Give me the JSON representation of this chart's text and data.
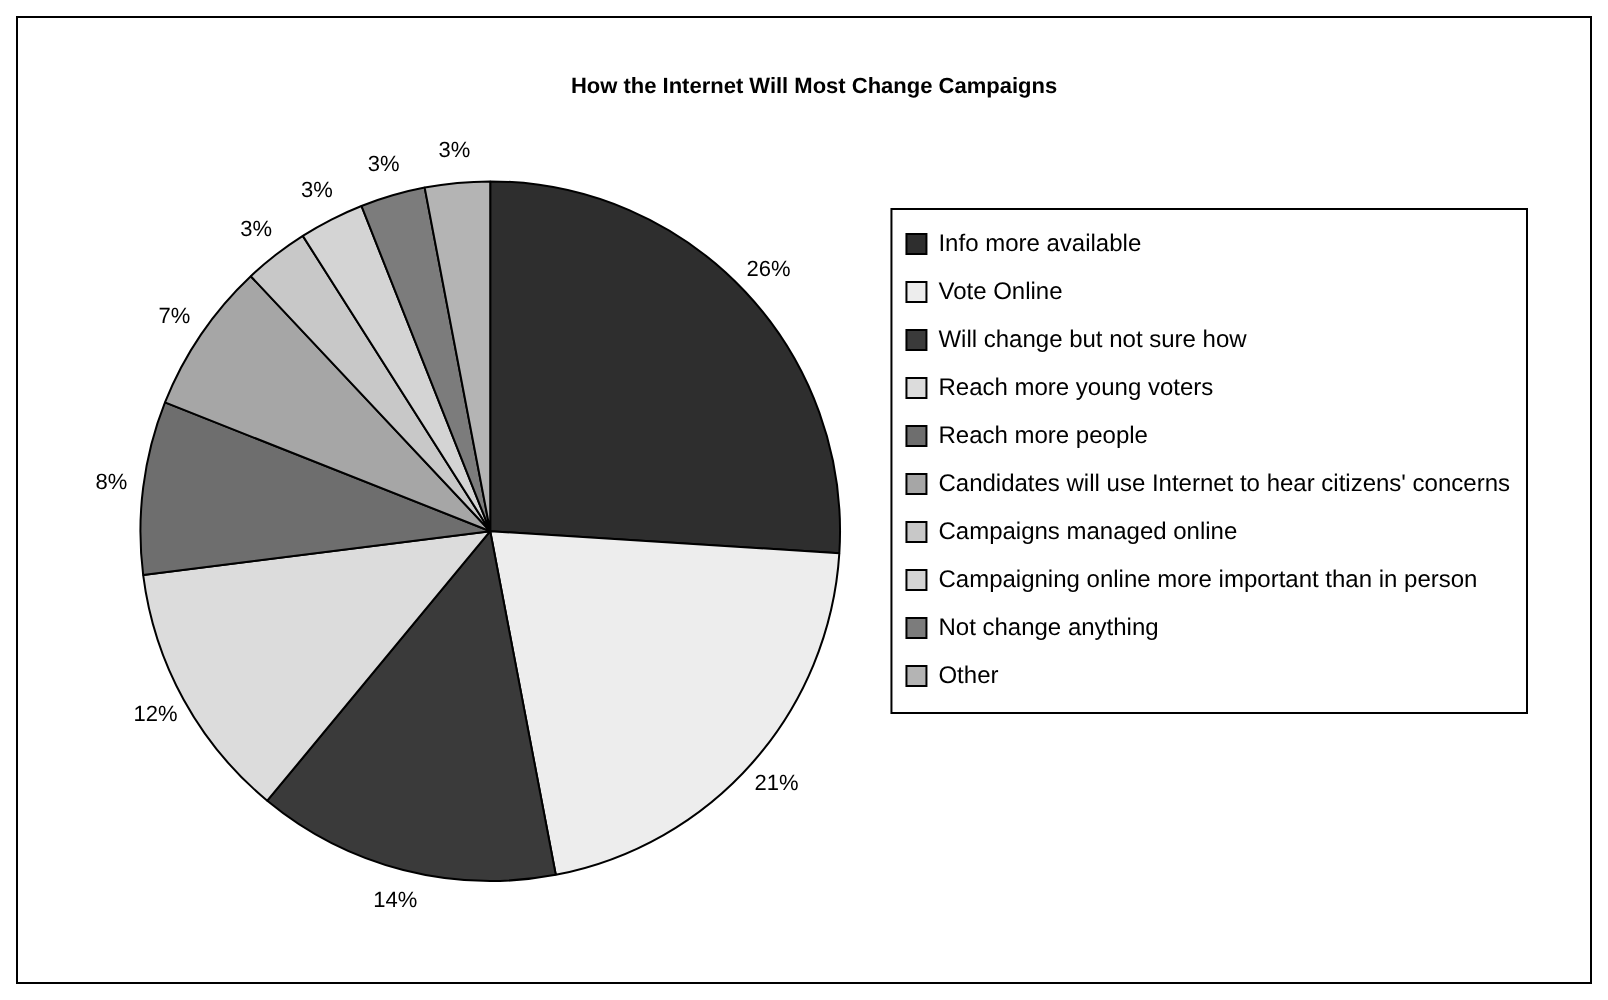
{
  "chart_data": {
    "type": "pie",
    "title": "How the Internet Will Most Change Campaigns",
    "categories": [
      "Info more available",
      "Vote Online",
      "Will change but not sure how",
      "Reach more young voters",
      "Reach more people",
      "Candidates will use Internet to hear citizens' concerns",
      "Campaigns managed online",
      "Campaigning online more important than in person",
      "Not change anything",
      "Other"
    ],
    "values": [
      26,
      21,
      14,
      12,
      8,
      7,
      3,
      3,
      3,
      3
    ],
    "value_labels": [
      "26%",
      "21%",
      "14%",
      "12%",
      "8%",
      "7%",
      "3%",
      "3%",
      "3%",
      "3%"
    ],
    "colors": [
      "#2e2e2e",
      "#ededed",
      "#3a3a3a",
      "#dcdcdc",
      "#6e6e6e",
      "#a6a6a6",
      "#c8c8c8",
      "#d4d4d4",
      "#7c7c7c",
      "#b4b4b4"
    ],
    "legend": "right"
  }
}
